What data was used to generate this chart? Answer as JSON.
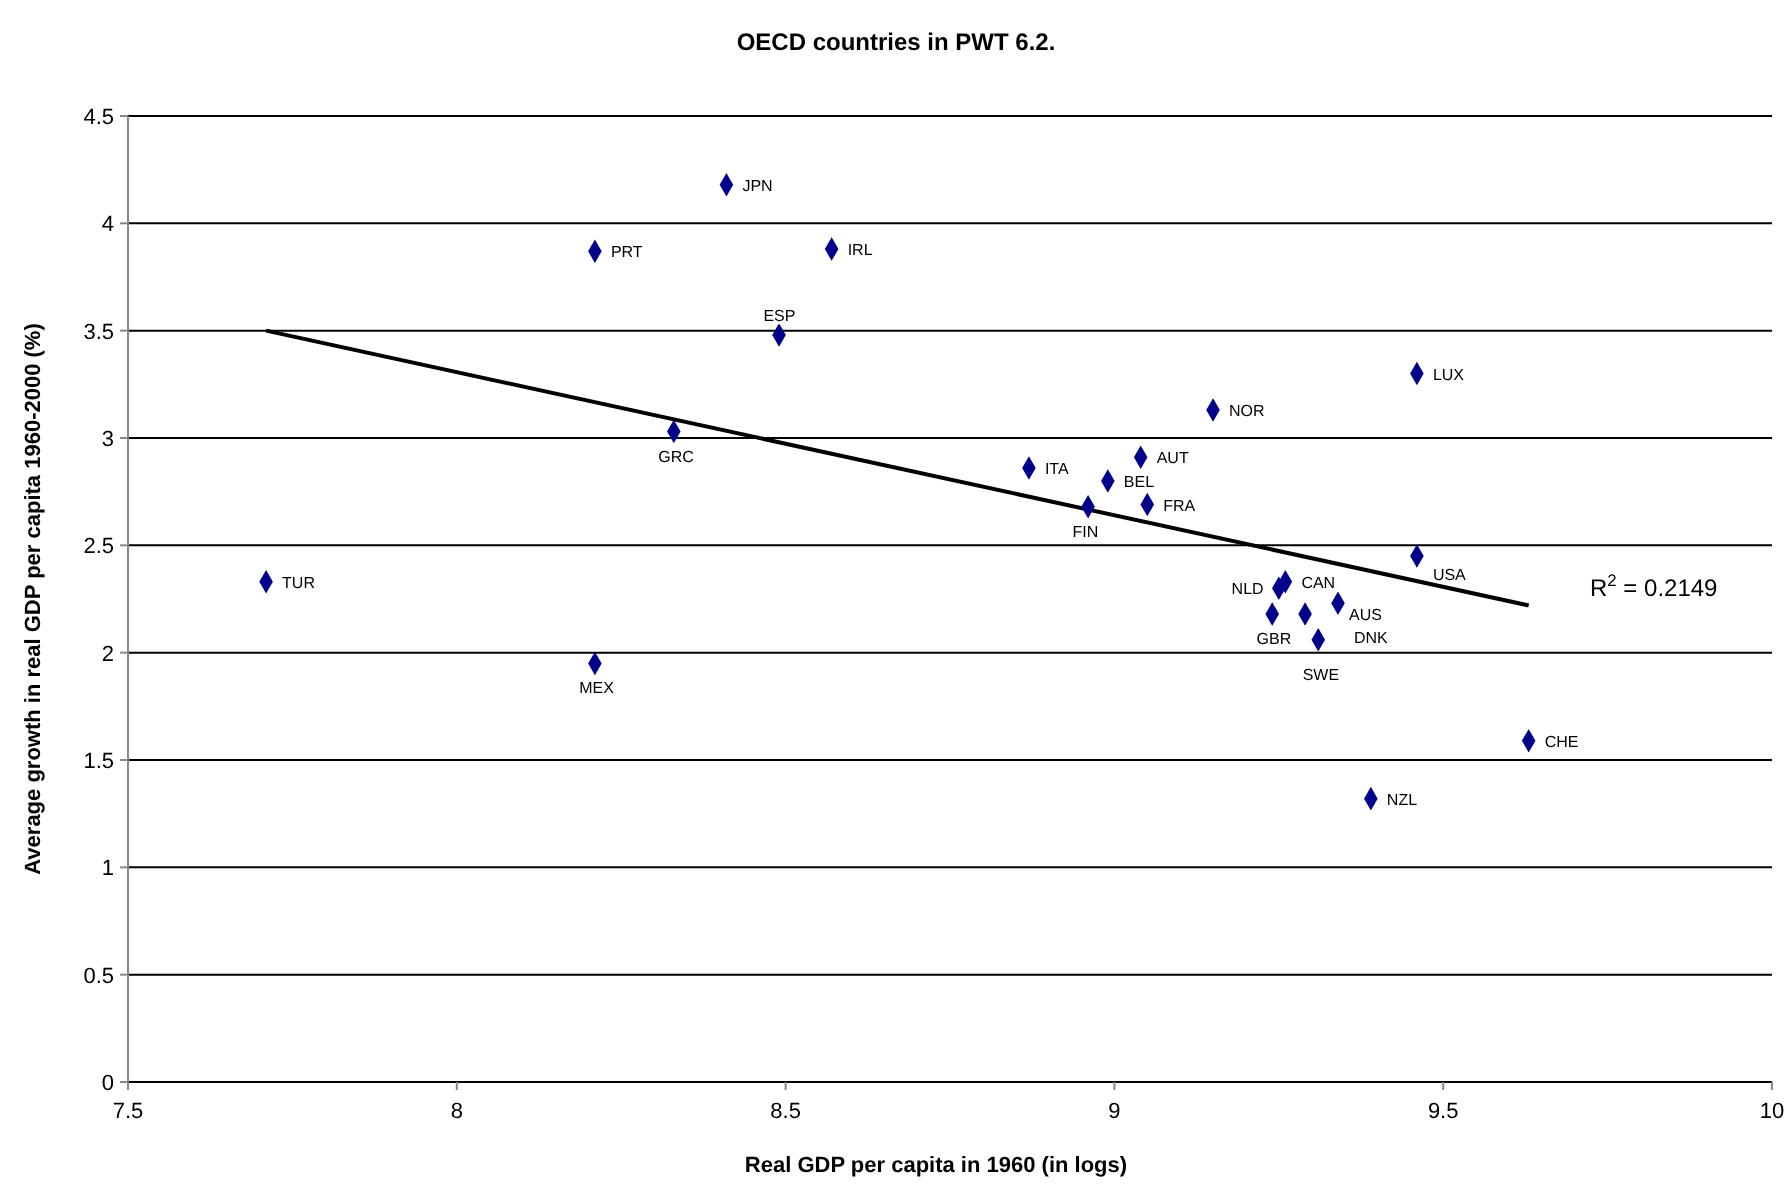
{
  "chart_data": {
    "type": "scatter",
    "title": "OECD countries in PWT 6.2.",
    "xlabel": "Real GDP per capita in 1960 (in logs)",
    "ylabel": "Average growth in real GDP per capita 1960-2000 (%)",
    "xlim": [
      7.5,
      10
    ],
    "xticks": [
      7.5,
      8,
      8.5,
      9,
      9.5,
      10
    ],
    "ylim": [
      0,
      4.5
    ],
    "yticks": [
      0,
      0.5,
      1,
      1.5,
      2,
      2.5,
      3,
      3.5,
      4,
      4.5
    ],
    "grid": "y",
    "marker": "diamond",
    "series": [
      {
        "color": "#00008b",
        "x": [
          7.71,
          8.21,
          8.33,
          8.21,
          8.41,
          8.57,
          8.49,
          8.87,
          8.96,
          8.99,
          9.04,
          9.05,
          9.15,
          9.46,
          9.46,
          9.26,
          9.25,
          9.24,
          9.29,
          9.34,
          9.31,
          9.63,
          9.39
        ],
        "values": [
          2.33,
          1.95,
          3.03,
          3.87,
          4.18,
          3.88,
          3.48,
          2.86,
          2.68,
          2.8,
          2.91,
          2.69,
          3.13,
          3.3,
          2.45,
          2.33,
          2.3,
          2.18,
          2.18,
          2.23,
          2.06,
          1.59,
          1.32
        ]
      },
      {
        "type": "line",
        "color": "#000000",
        "marker": "none",
        "x": [
          7.71,
          9.63
        ],
        "values": [
          3.5,
          2.22
        ]
      }
    ],
    "annotations": [
      {
        "text": "TUR",
        "x": 7.71,
        "y": 2.33
      },
      {
        "text": "MEX",
        "x": 8.21,
        "y": 1.95
      },
      {
        "text": "GRC",
        "x": 8.33,
        "y": 3.03
      },
      {
        "text": "PRT",
        "x": 8.21,
        "y": 3.87
      },
      {
        "text": "JPN",
        "x": 8.41,
        "y": 4.18
      },
      {
        "text": "IRL",
        "x": 8.57,
        "y": 3.88
      },
      {
        "text": "ESP",
        "x": 8.49,
        "y": 3.48
      },
      {
        "text": "ITA",
        "x": 8.87,
        "y": 2.86
      },
      {
        "text": "FIN",
        "x": 8.96,
        "y": 2.68
      },
      {
        "text": "BEL",
        "x": 8.99,
        "y": 2.8
      },
      {
        "text": "AUT",
        "x": 9.04,
        "y": 2.91
      },
      {
        "text": "FRA",
        "x": 9.05,
        "y": 2.69
      },
      {
        "text": "NOR",
        "x": 9.15,
        "y": 3.13
      },
      {
        "text": "LUX",
        "x": 9.46,
        "y": 3.3
      },
      {
        "text": "USA",
        "x": 9.46,
        "y": 2.45
      },
      {
        "text": "CAN",
        "x": 9.26,
        "y": 2.33
      },
      {
        "text": "NLD",
        "x": 9.25,
        "y": 2.3
      },
      {
        "text": "GBR",
        "x": 9.24,
        "y": 2.18
      },
      {
        "text": "AUS",
        "x": 9.29,
        "y": 2.18
      },
      {
        "text": "DNK",
        "x": 9.34,
        "y": 2.23
      },
      {
        "text": "SWE",
        "x": 9.31,
        "y": 2.06
      },
      {
        "text": "CHE",
        "x": 9.63,
        "y": 1.59
      },
      {
        "text": "NZL",
        "x": 9.39,
        "y": 1.32
      },
      "R$^{2}$ = 0.2149"
    ]
  }
}
